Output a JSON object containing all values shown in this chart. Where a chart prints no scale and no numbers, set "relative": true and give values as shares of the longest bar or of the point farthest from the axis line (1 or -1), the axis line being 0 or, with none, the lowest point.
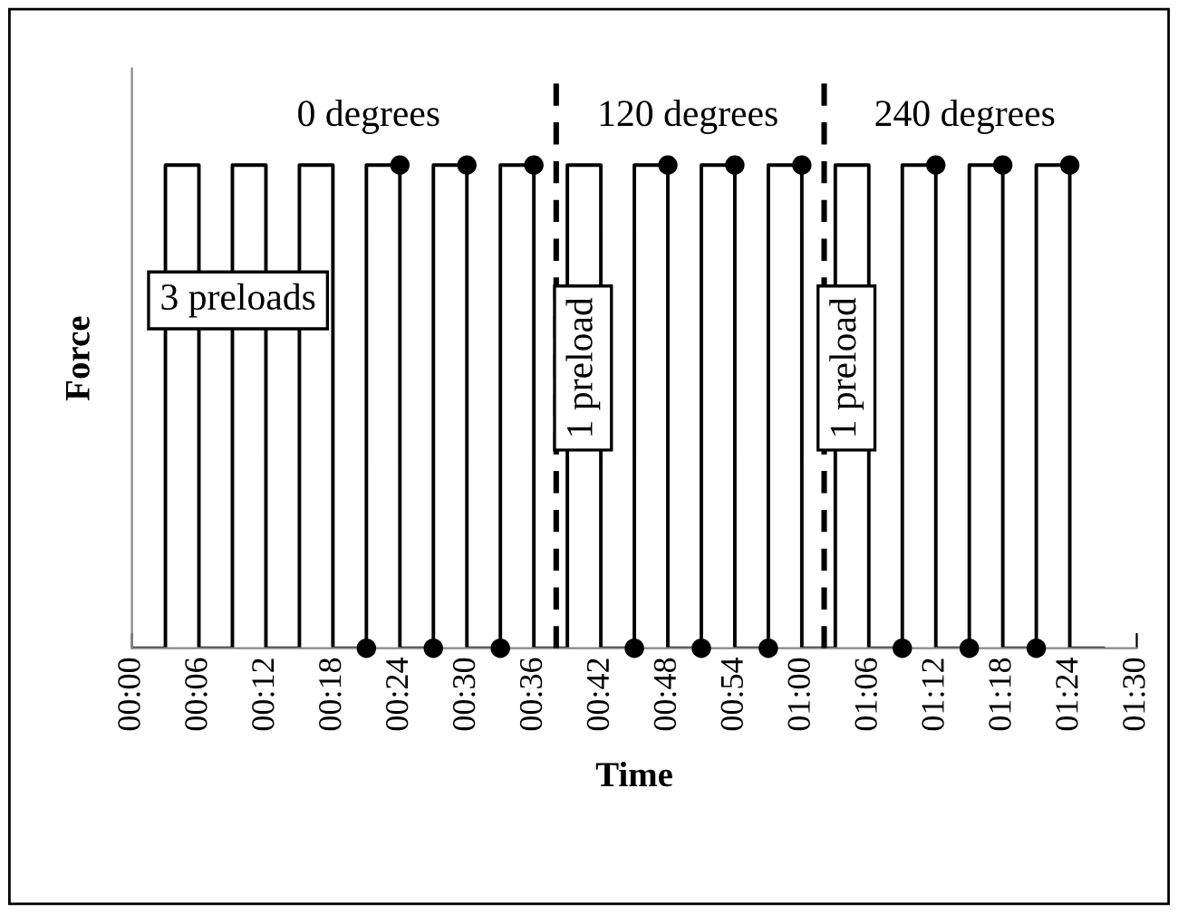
{
  "chart_data": {
    "type": "step",
    "relative": true,
    "xlabel": "Time",
    "ylabel": "Force",
    "xlim": [
      0,
      90
    ],
    "xticks": [
      {
        "value": 0,
        "label": "00:00"
      },
      {
        "value": 6,
        "label": "00:06"
      },
      {
        "value": 12,
        "label": "00:12"
      },
      {
        "value": 18,
        "label": "00:18"
      },
      {
        "value": 24,
        "label": "00:24"
      },
      {
        "value": 30,
        "label": "00:30"
      },
      {
        "value": 36,
        "label": "00:36"
      },
      {
        "value": 42,
        "label": "00:42"
      },
      {
        "value": 48,
        "label": "00:48"
      },
      {
        "value": 54,
        "label": "00:54"
      },
      {
        "value": 60,
        "label": "01:00"
      },
      {
        "value": 66,
        "label": "01:06"
      },
      {
        "value": 72,
        "label": "01:12"
      },
      {
        "value": 78,
        "label": "01:18"
      },
      {
        "value": 84,
        "label": "01:24"
      },
      {
        "value": 90,
        "label": "01:30"
      }
    ],
    "tick_labels": "x",
    "grid": false,
    "series": [
      {
        "color": "#000000",
        "marker": "none",
        "x": [
          0,
          3,
          6,
          9,
          12,
          15,
          18,
          21,
          24,
          27,
          30,
          33,
          36,
          39,
          42,
          45,
          48,
          51,
          54,
          57,
          60,
          63,
          66,
          69,
          72,
          75,
          78,
          81,
          84,
          87
        ],
        "values": [
          0,
          1,
          0,
          1,
          0,
          1,
          0,
          1,
          0,
          1,
          0,
          1,
          0,
          1,
          0,
          1,
          0,
          1,
          0,
          1,
          0,
          1,
          0,
          1,
          0,
          1,
          0,
          1,
          0,
          0
        ]
      },
      {
        "type": "scatter",
        "color": "#000000",
        "marker": "circle",
        "x": [
          21,
          24,
          27,
          30,
          33,
          36,
          45,
          48,
          51,
          54,
          57,
          60,
          69,
          72,
          75,
          78,
          81,
          84
        ],
        "values": [
          0,
          1,
          0,
          1,
          0,
          1,
          0,
          1,
          0,
          1,
          0,
          1,
          0,
          1,
          0,
          1,
          0,
          1
        ]
      }
    ],
    "ref_lines": [
      {
        "axis": "x",
        "value": 38,
        "color": "#000000",
        "line_style": "dashed"
      },
      {
        "axis": "x",
        "value": 62,
        "color": "#000000",
        "line_style": "dashed"
      }
    ],
    "annotations": [
      "0 degrees",
      "120 degrees",
      "240 degrees",
      "3 preloads",
      "1 preload",
      "1 preload"
    ]
  }
}
